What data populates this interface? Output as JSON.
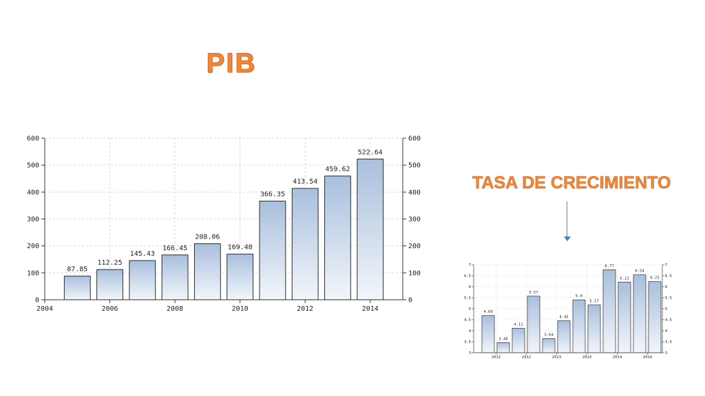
{
  "slide": {
    "title": "PIB",
    "growth_label": "TASA DE CRECIMIENTO",
    "arrow_icon": "arrow-down-icon",
    "title_color": "#f0873a"
  },
  "chart_data": [
    {
      "type": "bar",
      "x": [
        2005,
        2006,
        2007,
        2008,
        2009,
        2010,
        2011,
        2012,
        2013,
        2014
      ],
      "values": [
        87.85,
        112.25,
        145.43,
        166.45,
        208.06,
        169.48,
        366.35,
        413.54,
        459.62,
        522.64
      ],
      "value_labels": [
        "87.85",
        "112.25",
        "145.43",
        "166.45",
        "208.06",
        "169.48",
        "366.35",
        "413.54",
        "459.62",
        "522.64"
      ],
      "xlim": [
        2004,
        2015
      ],
      "xticks": [
        "2004",
        "2006",
        "2008",
        "2010",
        "2012",
        "2014"
      ],
      "ylim": [
        0,
        600
      ],
      "yticks": [
        "0",
        "100",
        "200",
        "300",
        "400",
        "500",
        "600"
      ],
      "grid": true,
      "title": "",
      "xlabel": "",
      "ylabel": ""
    },
    {
      "type": "bar",
      "values": [
        4.69,
        3.46,
        4.11,
        5.57,
        3.64,
        4.45,
        5.4,
        5.17,
        6.77,
        6.21,
        6.54,
        6.23
      ],
      "value_labels": [
        "4.69",
        "3.46",
        "4.11",
        "5.57",
        "3.64",
        "4.45",
        "5.4",
        "5.17",
        "6.77",
        "6.21",
        "6.54",
        "6.23"
      ],
      "xticks": [
        "2012",
        "2012",
        "2013",
        "2013",
        "2014",
        "2014"
      ],
      "ylim": [
        3,
        7
      ],
      "yticks": [
        "3",
        "3.5",
        "4",
        "4.5",
        "5",
        "5.5",
        "6",
        "6.5",
        "7"
      ],
      "grid": true,
      "title": "",
      "xlabel": "",
      "ylabel": ""
    }
  ],
  "colors": {
    "bar_top": "#a9bfdd",
    "bar_bottom": "#f2f6fb",
    "bar_stroke": "#2a2a2a",
    "grid": "#d6d6d6"
  }
}
